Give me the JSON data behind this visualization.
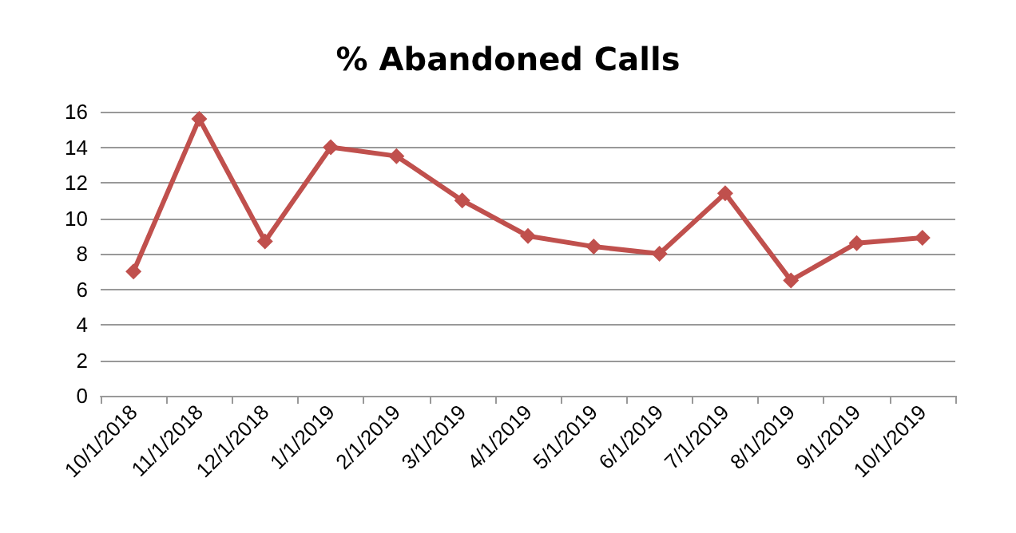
{
  "chart_data": {
    "type": "line",
    "title": "% Abandoned Calls",
    "categories": [
      "10/1/2018",
      "11/1/2018",
      "12/1/2018",
      "1/1/2019",
      "2/1/2019",
      "3/1/2019",
      "4/1/2019",
      "5/1/2019",
      "6/1/2019",
      "7/1/2019",
      "8/1/2019",
      "9/1/2019",
      "10/1/2019"
    ],
    "series": [
      {
        "color": "#c0504d",
        "values": [
          7,
          15.6,
          8.7,
          14,
          13.5,
          11,
          9,
          8.4,
          8,
          11.4,
          6.5,
          8.6,
          8.9
        ]
      }
    ],
    "ylim": [
      0,
      16
    ],
    "yticks": [
      0,
      2,
      4,
      6,
      8,
      10,
      12,
      14,
      16
    ],
    "grid": "y",
    "marker": "diamond",
    "line_style": "solid"
  }
}
